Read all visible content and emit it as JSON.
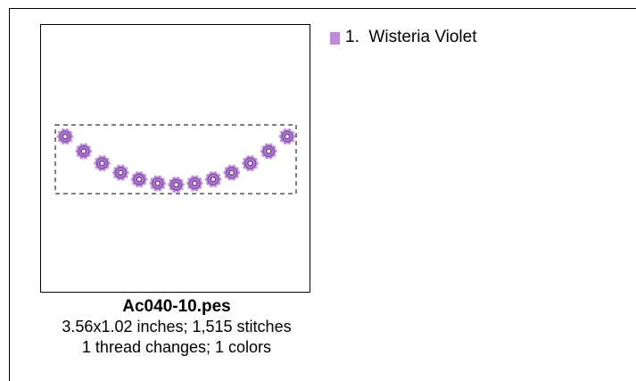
{
  "design": {
    "filename": "Ac040-10.pes",
    "dimensions_stitches": "3.56x1.02 inches; 1,515 stitches",
    "changes_colors": "1 thread changes; 1 colors"
  },
  "threads": [
    {
      "index_label": "1.",
      "name": "Wisteria Violet",
      "color": "#c08ad8"
    }
  ],
  "preview": {
    "motif": "flower-bead-garland-icon",
    "thread_color": "#b27ad0",
    "outline_color": "#7d4aa3",
    "bead_count": 13
  }
}
